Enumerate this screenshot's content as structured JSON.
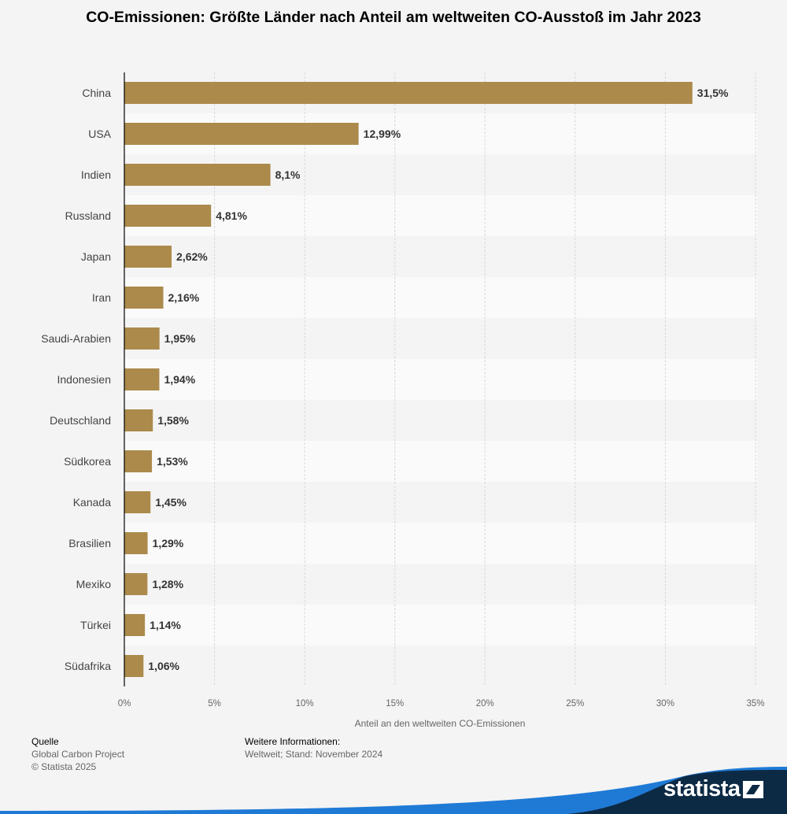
{
  "chart_data": {
    "type": "bar",
    "orientation": "horizontal",
    "title": "CO-Emissionen: Größte Länder nach Anteil am weltweiten CO-Ausstoß im Jahr 2023",
    "xlabel": "Anteil an den weltweiten CO-Emissionen",
    "xlim": [
      0,
      35
    ],
    "ticks": [
      0,
      5,
      10,
      15,
      20,
      25,
      30,
      35
    ],
    "tick_labels": [
      "0%",
      "5%",
      "10%",
      "15%",
      "20%",
      "25%",
      "30%",
      "35%"
    ],
    "grid": true,
    "bar_color": "#ab8a4c",
    "categories": [
      "China",
      "USA",
      "Indien",
      "Russland",
      "Japan",
      "Iran",
      "Saudi-Arabien",
      "Indonesien",
      "Deutschland",
      "Südkorea",
      "Kanada",
      "Brasilien",
      "Mexiko",
      "Türkei",
      "Südafrika"
    ],
    "values": [
      31.5,
      12.99,
      8.1,
      4.81,
      2.62,
      2.16,
      1.95,
      1.94,
      1.58,
      1.53,
      1.45,
      1.29,
      1.28,
      1.14,
      1.06
    ],
    "value_labels": [
      "31,5%",
      "12,99%",
      "8,1%",
      "4,81%",
      "2,62%",
      "2,16%",
      "1,95%",
      "1,94%",
      "1,58%",
      "1,53%",
      "1,45%",
      "1,29%",
      "1,28%",
      "1,14%",
      "1,06%"
    ]
  },
  "footer": {
    "source_heading": "Quelle",
    "source": "Global Carbon Project",
    "copyright": "© Statista 2025",
    "info_heading": "Weitere Informationen:",
    "info": "Weltweit; Stand: November 2024"
  },
  "brand": {
    "logo_text": "statista",
    "band_color": "#0d2a45",
    "accent_color": "#1f7ad6"
  }
}
